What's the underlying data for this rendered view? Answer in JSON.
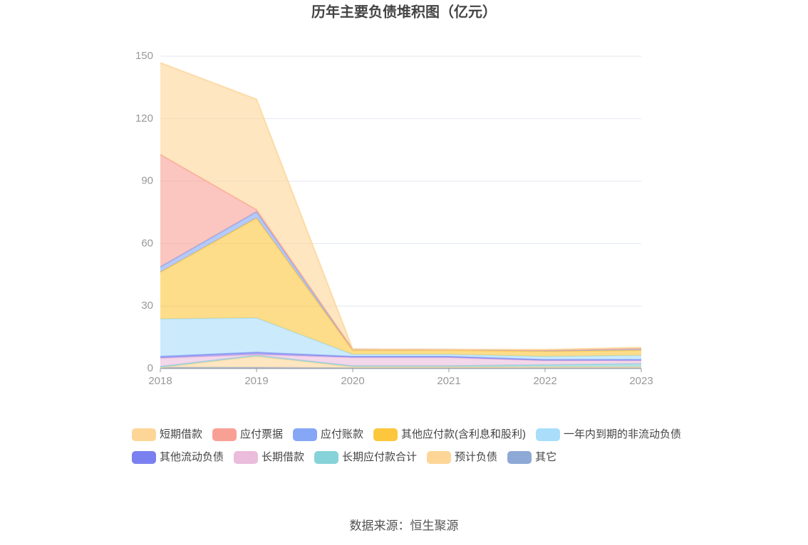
{
  "chart_data": {
    "type": "stacked_area",
    "title": "历年主要负债堆积图（亿元）",
    "categories": [
      "2018",
      "2019",
      "2020",
      "2021",
      "2022",
      "2023"
    ],
    "ylim": [
      0,
      150
    ],
    "yticks": [
      0,
      30,
      60,
      90,
      120,
      150
    ],
    "grid": true,
    "series": [
      {
        "name": "短期借款",
        "color": "#fdd697",
        "values": [
          44,
          53,
          0,
          0,
          0.3,
          0.5
        ]
      },
      {
        "name": "应付票据",
        "color": "#f9a095",
        "values": [
          54,
          1,
          0,
          0,
          0,
          0
        ]
      },
      {
        "name": "应付账款",
        "color": "#86a7f5",
        "values": [
          2.5,
          3,
          0.5,
          0.3,
          0.5,
          0.8
        ]
      },
      {
        "name": "其他应付款(含利息和股利)",
        "color": "#fcc73c",
        "values": [
          22.5,
          48,
          2,
          2,
          2.5,
          2.5
        ]
      },
      {
        "name": "一年内到期的非流动负债",
        "color": "#a9defa",
        "values": [
          18,
          16.5,
          1,
          1,
          1.5,
          2
        ]
      },
      {
        "name": "其他流动负债",
        "color": "#7b80f0",
        "values": [
          0.8,
          1,
          0.5,
          0.5,
          0.5,
          0.5
        ]
      },
      {
        "name": "长期借款",
        "color": "#ebbcdc",
        "values": [
          4,
          0.5,
          4,
          4,
          2,
          1.5
        ]
      },
      {
        "name": "长期应付款合计",
        "color": "#86d3d9",
        "values": [
          0.5,
          0.3,
          0.5,
          0.5,
          1,
          1.5
        ]
      },
      {
        "name": "预计负债",
        "color": "#fdd697",
        "values": [
          0,
          5.5,
          0.5,
          0.5,
          0.5,
          0.5
        ]
      },
      {
        "name": "其它",
        "color": "#8ea9d6",
        "values": [
          0.5,
          0.5,
          0.3,
          0.3,
          0.3,
          0.3
        ]
      }
    ],
    "source": "数据来源：恒生聚源"
  }
}
